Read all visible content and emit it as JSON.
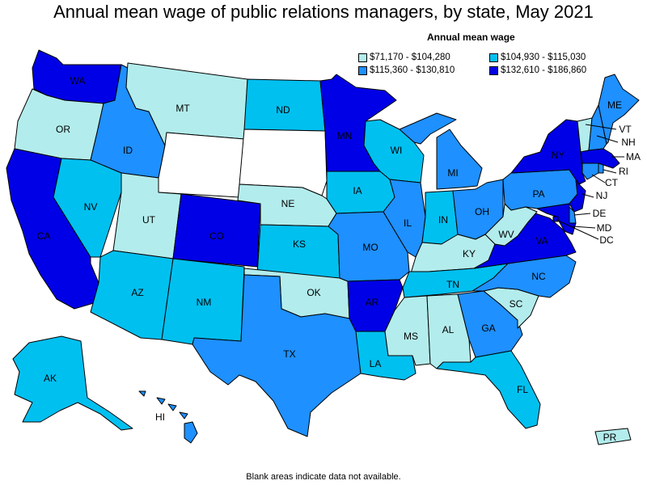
{
  "title": "Annual mean wage of public relations managers, by state, May 2021",
  "legend": {
    "title": "Annual mean wage",
    "items": [
      {
        "label": "$71,170 - $104,280",
        "color": "#b3ecec"
      },
      {
        "label": "$104,930 - $115,030",
        "color": "#00c0f0"
      },
      {
        "label": "$115,360 - $130,810",
        "color": "#1e90ff"
      },
      {
        "label": "$132,610 - $186,860",
        "color": "#0000e6"
      }
    ]
  },
  "note": "Blank areas indicate data not available.",
  "colors": {
    "c1": "#b3ecec",
    "c2": "#00c0f0",
    "c3": "#1e90ff",
    "c4": "#0000e6",
    "blank": "#ffffff"
  },
  "states": {
    "WA": {
      "label": "WA",
      "bin": 4
    },
    "OR": {
      "label": "OR",
      "bin": 1
    },
    "CA": {
      "label": "CA",
      "bin": 4
    },
    "ID": {
      "label": "ID",
      "bin": 3
    },
    "NV": {
      "label": "NV",
      "bin": 2
    },
    "MT": {
      "label": "MT",
      "bin": 1
    },
    "WY": {
      "label": "",
      "bin": 0
    },
    "UT": {
      "label": "UT",
      "bin": 1
    },
    "AZ": {
      "label": "AZ",
      "bin": 2
    },
    "CO": {
      "label": "CO",
      "bin": 4
    },
    "NM": {
      "label": "NM",
      "bin": 2
    },
    "ND": {
      "label": "ND",
      "bin": 2
    },
    "SD": {
      "label": "",
      "bin": 0
    },
    "NE": {
      "label": "NE",
      "bin": 1
    },
    "KS": {
      "label": "KS",
      "bin": 2
    },
    "OK": {
      "label": "OK",
      "bin": 1
    },
    "TX": {
      "label": "TX",
      "bin": 3
    },
    "MN": {
      "label": "MN",
      "bin": 4
    },
    "IA": {
      "label": "IA",
      "bin": 2
    },
    "MO": {
      "label": "MO",
      "bin": 3
    },
    "AR": {
      "label": "AR",
      "bin": 4
    },
    "LA": {
      "label": "LA",
      "bin": 2
    },
    "WI": {
      "label": "WI",
      "bin": 2
    },
    "IL": {
      "label": "IL",
      "bin": 3
    },
    "MI": {
      "label": "MI",
      "bin": 3
    },
    "IN": {
      "label": "IN",
      "bin": 2
    },
    "OH": {
      "label": "OH",
      "bin": 3
    },
    "KY": {
      "label": "KY",
      "bin": 1
    },
    "TN": {
      "label": "TN",
      "bin": 2
    },
    "MS": {
      "label": "MS",
      "bin": 1
    },
    "AL": {
      "label": "AL",
      "bin": 1
    },
    "GA": {
      "label": "GA",
      "bin": 3
    },
    "FL": {
      "label": "FL",
      "bin": 2
    },
    "SC": {
      "label": "SC",
      "bin": 1
    },
    "NC": {
      "label": "NC",
      "bin": 3
    },
    "VA": {
      "label": "VA",
      "bin": 4
    },
    "WV": {
      "label": "WV",
      "bin": 1
    },
    "PA": {
      "label": "PA",
      "bin": 3
    },
    "NY": {
      "label": "NY",
      "bin": 4
    },
    "ME": {
      "label": "ME",
      "bin": 3
    },
    "VT": {
      "label": "VT",
      "bin": 1
    },
    "NH": {
      "label": "NH",
      "bin": 3
    },
    "MA": {
      "label": "MA",
      "bin": 4
    },
    "RI": {
      "label": "RI",
      "bin": 3
    },
    "CT": {
      "label": "CT",
      "bin": 3
    },
    "NJ": {
      "label": "NJ",
      "bin": 4
    },
    "DE": {
      "label": "DE",
      "bin": 3
    },
    "MD": {
      "label": "MD",
      "bin": 4
    },
    "DC": {
      "label": "DC",
      "bin": 4
    },
    "AK": {
      "label": "AK",
      "bin": 2
    },
    "HI": {
      "label": "HI",
      "bin": 3
    },
    "PR": {
      "label": "PR",
      "bin": 1
    }
  }
}
